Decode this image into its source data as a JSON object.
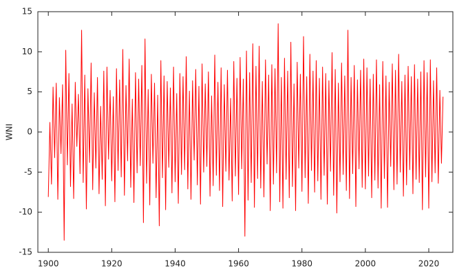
{
  "chart_data": {
    "type": "line",
    "ylabel": "WNI",
    "color": "#ff0000",
    "x": [
      1900,
      1900.5,
      1901,
      1901.5,
      1902,
      1902.5,
      1903,
      1903.5,
      1904,
      1904.5,
      1905,
      1905.5,
      1906,
      1906.5,
      1907,
      1907.5,
      1908,
      1908.5,
      1909,
      1909.5,
      1910,
      1910.5,
      1911,
      1911.5,
      1912,
      1912.5,
      1913,
      1913.5,
      1914,
      1914.5,
      1915,
      1915.5,
      1916,
      1916.5,
      1917,
      1917.5,
      1918,
      1918.5,
      1919,
      1919.5,
      1920,
      1920.5,
      1921,
      1921.5,
      1922,
      1922.5,
      1923,
      1923.5,
      1924,
      1924.5,
      1925,
      1925.5,
      1926,
      1926.5,
      1927,
      1927.5,
      1928,
      1928.5,
      1929,
      1929.5,
      1930,
      1930.5,
      1931,
      1931.5,
      1932,
      1932.5,
      1933,
      1933.5,
      1934,
      1934.5,
      1935,
      1935.5,
      1936,
      1936.5,
      1937,
      1937.5,
      1938,
      1938.5,
      1939,
      1939.5,
      1940,
      1940.5,
      1941,
      1941.5,
      1942,
      1942.5,
      1943,
      1943.5,
      1944,
      1944.5,
      1945,
      1945.5,
      1946,
      1946.5,
      1947,
      1947.5,
      1948,
      1948.5,
      1949,
      1949.5,
      1950,
      1950.5,
      1951,
      1951.5,
      1952,
      1952.5,
      1953,
      1953.5,
      1954,
      1954.5,
      1955,
      1955.5,
      1956,
      1956.5,
      1957,
      1957.5,
      1958,
      1958.5,
      1959,
      1959.5,
      1960,
      1960.5,
      1961,
      1961.5,
      1962,
      1962.5,
      1963,
      1963.5,
      1964,
      1964.5,
      1965,
      1965.5,
      1966,
      1966.5,
      1967,
      1967.5,
      1968,
      1968.5,
      1969,
      1969.5,
      1970,
      1970.5,
      1971,
      1971.5,
      1972,
      1972.5,
      1973,
      1973.5,
      1974,
      1974.5,
      1975,
      1975.5,
      1976,
      1976.5,
      1977,
      1977.5,
      1978,
      1978.5,
      1979,
      1979.5,
      1980,
      1980.5,
      1981,
      1981.5,
      1982,
      1982.5,
      1983,
      1983.5,
      1984,
      1984.5,
      1985,
      1985.5,
      1986,
      1986.5,
      1987,
      1987.5,
      1988,
      1988.5,
      1989,
      1989.5,
      1990,
      1990.5,
      1991,
      1991.5,
      1992,
      1992.5,
      1993,
      1993.5,
      1994,
      1994.5,
      1995,
      1995.5,
      1996,
      1996.5,
      1997,
      1997.5,
      1998,
      1998.5,
      1999,
      1999.5,
      2000,
      2000.5,
      2001,
      2001.5,
      2002,
      2002.5,
      2003,
      2003.5,
      2004,
      2004.5,
      2005,
      2005.5,
      2006,
      2006.5,
      2007,
      2007.5,
      2008,
      2008.5,
      2009,
      2009.5,
      2010,
      2010.5,
      2011,
      2011.5,
      2012,
      2012.5,
      2013,
      2013.5,
      2014,
      2014.5,
      2015,
      2015.5,
      2016,
      2016.5,
      2017,
      2017.5,
      2018,
      2018.5,
      2019,
      2019.5,
      2020,
      2020.5,
      2021,
      2021.5,
      2022,
      2022.5,
      2023,
      2023.5,
      2024,
      2024.5
    ],
    "values": [
      -8.1,
      1.2,
      -6.5,
      5.6,
      -3.2,
      6.1,
      -8.4,
      4.3,
      -2.7,
      5.9,
      -13.5,
      10.2,
      -4.1,
      7.3,
      -6.8,
      3.5,
      -8.3,
      6.2,
      -1.8,
      4.7,
      -5.2,
      12.7,
      -6.3,
      7.1,
      -9.6,
      5.4,
      -3.8,
      8.6,
      -7.2,
      4.9,
      -4.5,
      6.8,
      -7.7,
      3.2,
      -5.9,
      7.6,
      -9.2,
      8.1,
      -3.4,
      5.2,
      -6.1,
      4.4,
      -8.7,
      7.9,
      -4.8,
      6.5,
      -5.6,
      10.3,
      -7.9,
      5.8,
      -3.6,
      9.1,
      -6.9,
      4.1,
      -8.8,
      7.4,
      -5.1,
      6.6,
      -4.2,
      8.3,
      -11.3,
      11.6,
      -6.4,
      5.3,
      -9.1,
      7.2,
      -3.9,
      6.1,
      -8.2,
      4.6,
      -11.7,
      8.9,
      -5.7,
      7.0,
      -9.7,
      6.3,
      -4.4,
      5.5,
      -7.6,
      8.1,
      -6.2,
      4.8,
      -8.9,
      7.3,
      -5.3,
      6.9,
      -4.7,
      9.4,
      -7.1,
      5.1,
      -8.4,
      6.4,
      -3.5,
      7.8,
      -6.6,
      5.7,
      -9.0,
      8.5,
      -5.0,
      6.0,
      -4.3,
      7.5,
      -8.0,
      4.5,
      -6.7,
      9.6,
      -5.4,
      6.2,
      -7.3,
      8.0,
      -9.3,
      5.9,
      -4.9,
      7.7,
      -6.0,
      4.2,
      -8.6,
      8.8,
      -5.5,
      6.7,
      -7.8,
      9.3,
      -4.6,
      6.6,
      -13.0,
      10.1,
      -8.5,
      7.4,
      -6.3,
      11.0,
      -9.4,
      8.2,
      -5.8,
      10.7,
      -7.0,
      6.3,
      -8.1,
      9.0,
      -4.0,
      7.1,
      -9.8,
      8.4,
      -6.5,
      7.9,
      -5.1,
      13.5,
      -8.7,
      6.8,
      -9.5,
      9.2,
      -5.9,
      7.6,
      -8.2,
      11.2,
      -6.8,
      6.0,
      -9.8,
      8.7,
      -4.5,
      7.2,
      -7.4,
      11.9,
      -5.7,
      6.9,
      -8.9,
      9.7,
      -4.8,
      7.6,
      -7.5,
      8.9,
      -6.1,
      6.7,
      -8.4,
      8.1,
      -5.4,
      7.3,
      -9.0,
      6.4,
      -4.9,
      9.9,
      -7.9,
      7.8,
      -10.1,
      6.1,
      -6.2,
      8.6,
      -5.3,
      7.0,
      -7.3,
      12.7,
      -8.3,
      6.8,
      -5.2,
      8.3,
      -9.3,
      6.5,
      -4.6,
      7.7,
      -6.9,
      9.1,
      -7.1,
      8.0,
      -5.5,
      6.6,
      -8.2,
      7.2,
      -6.0,
      9.0,
      -7.0,
      5.9,
      -9.5,
      8.8,
      -5.8,
      7.0,
      -9.4,
      6.2,
      -4.3,
      8.5,
      -7.2,
      7.7,
      -6.5,
      9.7,
      -5.0,
      6.3,
      -8.0,
      7.1,
      -6.6,
      8.2,
      -4.7,
      6.9,
      -7.7,
      8.4,
      -5.9,
      6.6,
      -6.3,
      7.5,
      -9.7,
      8.9,
      -5.6,
      7.4,
      -9.5,
      9.0,
      -6.2,
      6.4,
      -5.1,
      8.0,
      -6.4,
      5.2,
      -3.9,
      4.4
    ],
    "xlim": [
      1896.7,
      2027.6
    ],
    "xticks": [
      1900,
      1920,
      1940,
      1960,
      1980,
      2000,
      2020
    ],
    "ylim": [
      -15,
      15
    ],
    "yticks": [
      -15,
      -10,
      -5,
      0,
      5,
      10,
      15
    ]
  }
}
